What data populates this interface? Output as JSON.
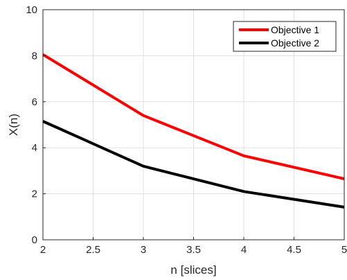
{
  "chart_data": {
    "type": "line",
    "title": "",
    "xlabel": "n [slices]",
    "ylabel": "X(n)",
    "xlim": [
      2,
      5
    ],
    "ylim": [
      0,
      10
    ],
    "xticks": [
      2,
      2.5,
      3,
      3.5,
      4,
      4.5,
      5
    ],
    "yticks": [
      0,
      2,
      4,
      6,
      8,
      10
    ],
    "xtick_labels": [
      "2",
      "2.5",
      "3",
      "3.5",
      "4",
      "4.5",
      "5"
    ],
    "ytick_labels": [
      "0",
      "2",
      "4",
      "6",
      "8",
      "10"
    ],
    "grid": true,
    "legend_position": "top-right",
    "series": [
      {
        "name": "Objective 1",
        "color": "#ff0000",
        "x": [
          2,
          3,
          4,
          5
        ],
        "y": [
          8.05,
          5.4,
          3.65,
          2.65
        ]
      },
      {
        "name": "Objective 2",
        "color": "#000000",
        "x": [
          2,
          3,
          4,
          5
        ],
        "y": [
          5.15,
          3.2,
          2.1,
          1.42
        ]
      }
    ]
  }
}
